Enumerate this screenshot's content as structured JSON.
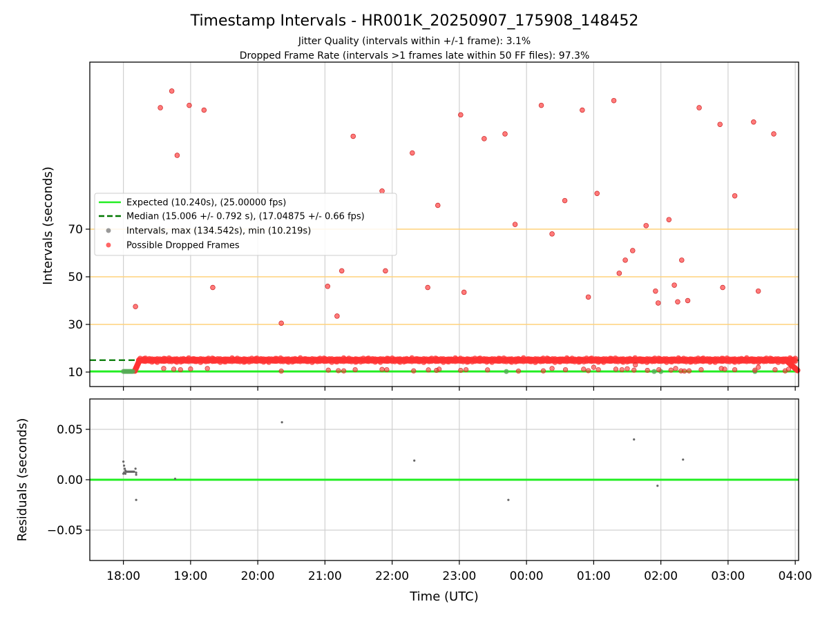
{
  "chart_data": [
    {
      "type": "scatter",
      "title": "Timestamp Intervals - HR001K_20250907_175908_148452",
      "subtitle_lines": [
        "Jitter Quality (intervals within +/-1 frame): 3.1%",
        "Dropped Frame Rate (intervals >1 frames late within 50 FF files): 97.3%"
      ],
      "xlabel": "",
      "ylabel": "Intervals (seconds)",
      "x_range_hours": [
        17.5,
        28.05
      ],
      "x_ticks": [
        18,
        19,
        20,
        21,
        22,
        23,
        24,
        25,
        26,
        27,
        28
      ],
      "x_tick_labels": [
        "18:00",
        "19:00",
        "20:00",
        "21:00",
        "22:00",
        "23:00",
        "00:00",
        "01:00",
        "02:00",
        "03:00",
        "04:00"
      ],
      "y_tick_values": [
        10,
        30,
        50,
        70
      ],
      "y_tick_labels": [
        "10",
        "30",
        "50",
        "70"
      ],
      "grid": true,
      "reference_lines": {
        "expected": 10.24,
        "median": 15.006,
        "orange_levels": [
          30,
          50,
          70
        ]
      },
      "legend": {
        "placement": "center-left",
        "entries": [
          {
            "label": "Expected (10.240s), (25.00000 fps)",
            "style": "solid-line",
            "color": "#22ee22"
          },
          {
            "label": "Median (15.006 +/- 0.792 s), (17.04875 +/- 0.66 fps)",
            "style": "dashed-line",
            "color": "#007700"
          },
          {
            "label": "Intervals, max (134.542s), min (10.219s)",
            "style": "dot",
            "color": "#999999"
          },
          {
            "label": "Possible Dropped Frames",
            "style": "dot",
            "color": "#ff3333"
          }
        ]
      },
      "band": {
        "x_start": 18.23,
        "x_end": 28.0,
        "y_center": 15.0,
        "amplitude": 0.6
      },
      "green_intervals": [
        {
          "x": 18.0,
          "y": 10.25
        },
        {
          "x": 18.02,
          "y": 10.25
        },
        {
          "x": 18.04,
          "y": 10.25
        },
        {
          "x": 18.06,
          "y": 10.25
        },
        {
          "x": 18.08,
          "y": 10.25
        },
        {
          "x": 18.1,
          "y": 10.25
        },
        {
          "x": 18.12,
          "y": 10.25
        },
        {
          "x": 18.14,
          "y": 10.25
        },
        {
          "x": 23.7,
          "y": 10.22
        },
        {
          "x": 25.9,
          "y": 10.24
        },
        {
          "x": 26.0,
          "y": 10.24
        },
        {
          "x": 27.4,
          "y": 10.24
        }
      ],
      "dropped_points": [
        {
          "x": 18.18,
          "y": 37.5
        },
        {
          "x": 18.55,
          "y": 121
        },
        {
          "x": 18.72,
          "y": 128
        },
        {
          "x": 18.8,
          "y": 101
        },
        {
          "x": 18.98,
          "y": 122
        },
        {
          "x": 19.2,
          "y": 120
        },
        {
          "x": 19.33,
          "y": 45.5
        },
        {
          "x": 20.35,
          "y": 30.5
        },
        {
          "x": 21.04,
          "y": 46
        },
        {
          "x": 21.18,
          "y": 33.5
        },
        {
          "x": 21.25,
          "y": 52.5
        },
        {
          "x": 21.42,
          "y": 109
        },
        {
          "x": 21.85,
          "y": 86
        },
        {
          "x": 21.9,
          "y": 52.5
        },
        {
          "x": 22.3,
          "y": 102
        },
        {
          "x": 22.53,
          "y": 45.5
        },
        {
          "x": 22.68,
          "y": 80
        },
        {
          "x": 23.02,
          "y": 118
        },
        {
          "x": 23.07,
          "y": 43.5
        },
        {
          "x": 23.37,
          "y": 108
        },
        {
          "x": 23.68,
          "y": 110
        },
        {
          "x": 23.83,
          "y": 72
        },
        {
          "x": 24.22,
          "y": 122
        },
        {
          "x": 24.38,
          "y": 68
        },
        {
          "x": 24.57,
          "y": 82
        },
        {
          "x": 24.83,
          "y": 120
        },
        {
          "x": 24.92,
          "y": 41.5
        },
        {
          "x": 25.05,
          "y": 85
        },
        {
          "x": 25.3,
          "y": 124
        },
        {
          "x": 25.38,
          "y": 51.5
        },
        {
          "x": 25.47,
          "y": 57
        },
        {
          "x": 25.58,
          "y": 61
        },
        {
          "x": 25.78,
          "y": 71.5
        },
        {
          "x": 25.92,
          "y": 44
        },
        {
          "x": 25.96,
          "y": 39
        },
        {
          "x": 26.12,
          "y": 74
        },
        {
          "x": 26.2,
          "y": 46.5
        },
        {
          "x": 26.25,
          "y": 39.5
        },
        {
          "x": 26.31,
          "y": 57
        },
        {
          "x": 26.4,
          "y": 40
        },
        {
          "x": 26.57,
          "y": 121
        },
        {
          "x": 26.88,
          "y": 114
        },
        {
          "x": 26.92,
          "y": 45.5
        },
        {
          "x": 27.1,
          "y": 84
        },
        {
          "x": 27.38,
          "y": 115
        },
        {
          "x": 27.45,
          "y": 44
        },
        {
          "x": 27.68,
          "y": 110
        }
      ],
      "low_dropped_points": [
        {
          "x": 18.6,
          "y": 11.5
        },
        {
          "x": 18.75,
          "y": 11.2
        },
        {
          "x": 18.85,
          "y": 11.0
        },
        {
          "x": 19.0,
          "y": 11.3
        },
        {
          "x": 19.25,
          "y": 11.5
        },
        {
          "x": 20.35,
          "y": 10.4
        },
        {
          "x": 21.05,
          "y": 10.8
        },
        {
          "x": 21.2,
          "y": 10.6
        },
        {
          "x": 21.28,
          "y": 10.5
        },
        {
          "x": 21.45,
          "y": 11.0
        },
        {
          "x": 21.85,
          "y": 11.1
        },
        {
          "x": 21.92,
          "y": 11.0
        },
        {
          "x": 22.32,
          "y": 10.5
        },
        {
          "x": 22.54,
          "y": 10.9
        },
        {
          "x": 22.66,
          "y": 10.7
        },
        {
          "x": 22.7,
          "y": 11.2
        },
        {
          "x": 23.02,
          "y": 10.7
        },
        {
          "x": 23.1,
          "y": 11.0
        },
        {
          "x": 23.42,
          "y": 10.9
        },
        {
          "x": 23.88,
          "y": 10.4
        },
        {
          "x": 24.25,
          "y": 10.5
        },
        {
          "x": 24.38,
          "y": 11.5
        },
        {
          "x": 24.58,
          "y": 11.0
        },
        {
          "x": 24.85,
          "y": 11.2
        },
        {
          "x": 24.92,
          "y": 10.6
        },
        {
          "x": 25.0,
          "y": 12.0
        },
        {
          "x": 25.07,
          "y": 11.0
        },
        {
          "x": 25.33,
          "y": 11.2
        },
        {
          "x": 25.42,
          "y": 11.0
        },
        {
          "x": 25.5,
          "y": 11.4
        },
        {
          "x": 25.6,
          "y": 10.8
        },
        {
          "x": 25.62,
          "y": 13.0
        },
        {
          "x": 25.8,
          "y": 10.7
        },
        {
          "x": 25.97,
          "y": 11.0
        },
        {
          "x": 26.15,
          "y": 10.8
        },
        {
          "x": 26.22,
          "y": 11.5
        },
        {
          "x": 26.3,
          "y": 10.5
        },
        {
          "x": 26.35,
          "y": 10.4
        },
        {
          "x": 26.42,
          "y": 10.5
        },
        {
          "x": 26.6,
          "y": 11.0
        },
        {
          "x": 26.9,
          "y": 11.5
        },
        {
          "x": 26.95,
          "y": 11.2
        },
        {
          "x": 27.1,
          "y": 11.0
        },
        {
          "x": 27.4,
          "y": 10.8
        },
        {
          "x": 27.45,
          "y": 12.0
        },
        {
          "x": 27.7,
          "y": 11.0
        },
        {
          "x": 27.85,
          "y": 10.5
        },
        {
          "x": 27.9,
          "y": 11.2
        }
      ]
    },
    {
      "type": "scatter",
      "title": "",
      "xlabel": "Time (UTC)",
      "ylabel": "Residuals (seconds)",
      "x_range_hours": [
        17.5,
        28.05
      ],
      "x_ticks": [
        18,
        19,
        20,
        21,
        22,
        23,
        24,
        25,
        26,
        27,
        28
      ],
      "x_tick_labels": [
        "18:00",
        "19:00",
        "20:00",
        "21:00",
        "22:00",
        "23:00",
        "00:00",
        "01:00",
        "02:00",
        "03:00",
        "04:00"
      ],
      "ylim": [
        -0.08,
        0.08
      ],
      "y_tick_values": [
        -0.05,
        0.0,
        0.05
      ],
      "y_tick_labels": [
        "−0.05",
        "0.00",
        "0.05"
      ],
      "grid": true,
      "reference_line": 0.0,
      "residual_points": [
        {
          "x": 18.0,
          "y": 0.018
        },
        {
          "x": 18.01,
          "y": 0.014
        },
        {
          "x": 18.02,
          "y": 0.011
        },
        {
          "x": 18.03,
          "y": 0.009
        },
        {
          "x": 18.04,
          "y": 0.008
        },
        {
          "x": 18.05,
          "y": 0.008
        },
        {
          "x": 18.06,
          "y": 0.008
        },
        {
          "x": 18.07,
          "y": 0.008
        },
        {
          "x": 18.08,
          "y": 0.008
        },
        {
          "x": 18.09,
          "y": 0.008
        },
        {
          "x": 18.1,
          "y": 0.008
        },
        {
          "x": 18.11,
          "y": 0.008
        },
        {
          "x": 18.12,
          "y": 0.008
        },
        {
          "x": 18.13,
          "y": 0.008
        },
        {
          "x": 18.14,
          "y": 0.008
        },
        {
          "x": 18.15,
          "y": 0.008
        },
        {
          "x": 18.16,
          "y": 0.008
        },
        {
          "x": 18.18,
          "y": 0.011
        },
        {
          "x": 18.19,
          "y": 0.005
        },
        {
          "x": 18.0,
          "y": 0.006
        },
        {
          "x": 18.01,
          "y": 0.007
        },
        {
          "x": 18.03,
          "y": 0.006
        },
        {
          "x": 18.19,
          "y": 0.007
        },
        {
          "x": 18.19,
          "y": -0.02
        },
        {
          "x": 18.77,
          "y": 0.001
        },
        {
          "x": 20.36,
          "y": 0.057
        },
        {
          "x": 22.33,
          "y": 0.019
        },
        {
          "x": 23.73,
          "y": -0.02
        },
        {
          "x": 25.6,
          "y": 0.04
        },
        {
          "x": 25.95,
          "y": -0.006
        },
        {
          "x": 26.33,
          "y": 0.02
        }
      ]
    }
  ],
  "colors": {
    "expected_line": "#22ee22",
    "median_line": "#007700",
    "dropped": "#ff3333",
    "orange_line": "#ffd27a",
    "residual_dots": "#666666"
  }
}
